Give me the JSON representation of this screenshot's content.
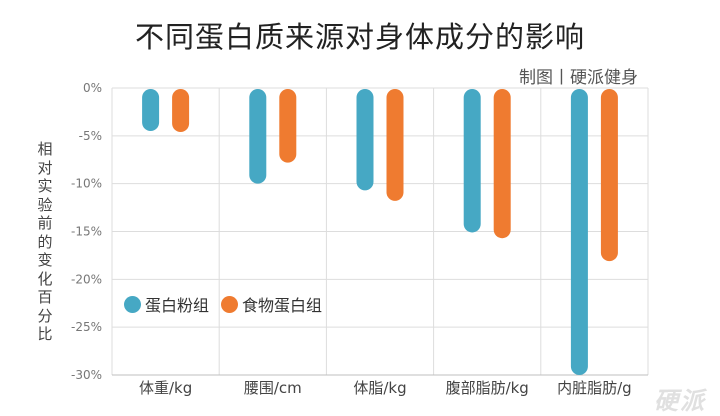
{
  "title": "不同蛋白质来源对身体成分的影响",
  "credit": "制图丨硬派健身",
  "watermark": "硬派",
  "colors": {
    "series1": "#46a8c4",
    "series2": "#ef7b30",
    "grid": "#dddddd",
    "axis": "#bfbfbf",
    "tick_text": "#777777"
  },
  "chart_data": {
    "type": "bar",
    "title": "不同蛋白质来源对身体成分的影响",
    "ylabel": "相对实验前的变化百分比",
    "categories": [
      "体重/kg",
      "腰围/cm",
      "体脂/kg",
      "腹部脂肪/kg",
      "内脏脂肪/g"
    ],
    "series": [
      {
        "name": "蛋白粉组",
        "color": "#46a8c4",
        "values": [
          -4.5,
          -10.0,
          -10.7,
          -15.1,
          -30.0
        ]
      },
      {
        "name": "食物蛋白组",
        "color": "#ef7b30",
        "values": [
          -4.6,
          -7.8,
          -11.8,
          -15.7,
          -18.1
        ]
      }
    ],
    "yticks": [
      0,
      -5,
      -10,
      -15,
      -20,
      -25,
      -30
    ],
    "ytick_labels": [
      "0%",
      "-5%",
      "-10%",
      "-15%",
      "-20%",
      "-25%",
      "-30%"
    ],
    "ylim": [
      -30,
      0
    ],
    "grid": true,
    "legend_position": "lower-left inside plot"
  }
}
